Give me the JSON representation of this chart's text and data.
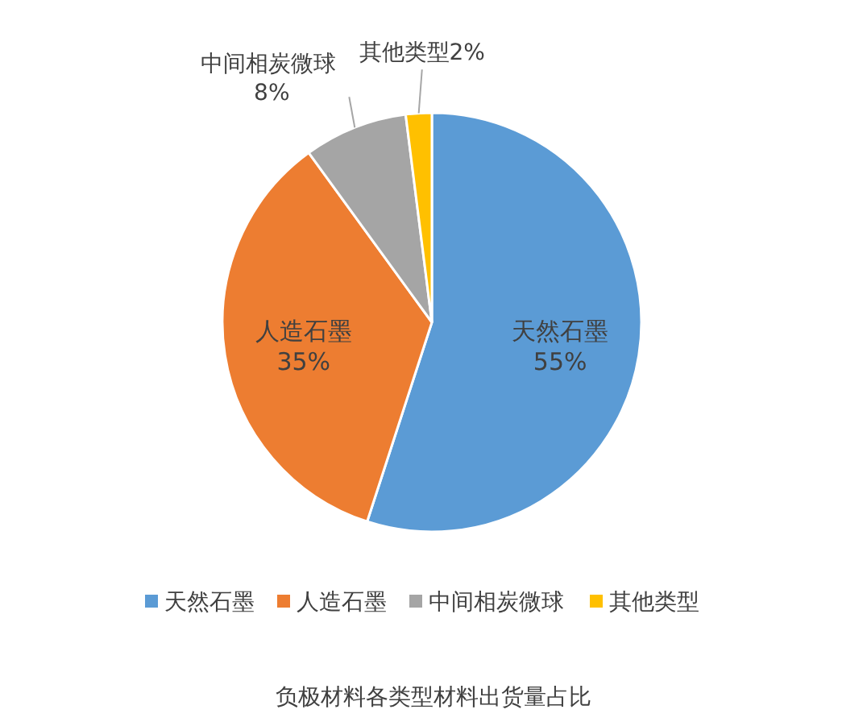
{
  "chart_data": {
    "type": "pie",
    "title": "负极材料各类型材料出货量占比",
    "categories": [
      "天然石墨",
      "人造石墨",
      "中间相炭微球",
      "其他类型"
    ],
    "values": [
      55,
      35,
      8,
      2
    ],
    "colors": [
      "#5b9bd5",
      "#ed7d31",
      "#a5a5a5",
      "#ffc000"
    ],
    "value_labels": [
      "55%",
      "35%",
      "8%",
      "2%"
    ],
    "legend": "bottom"
  }
}
